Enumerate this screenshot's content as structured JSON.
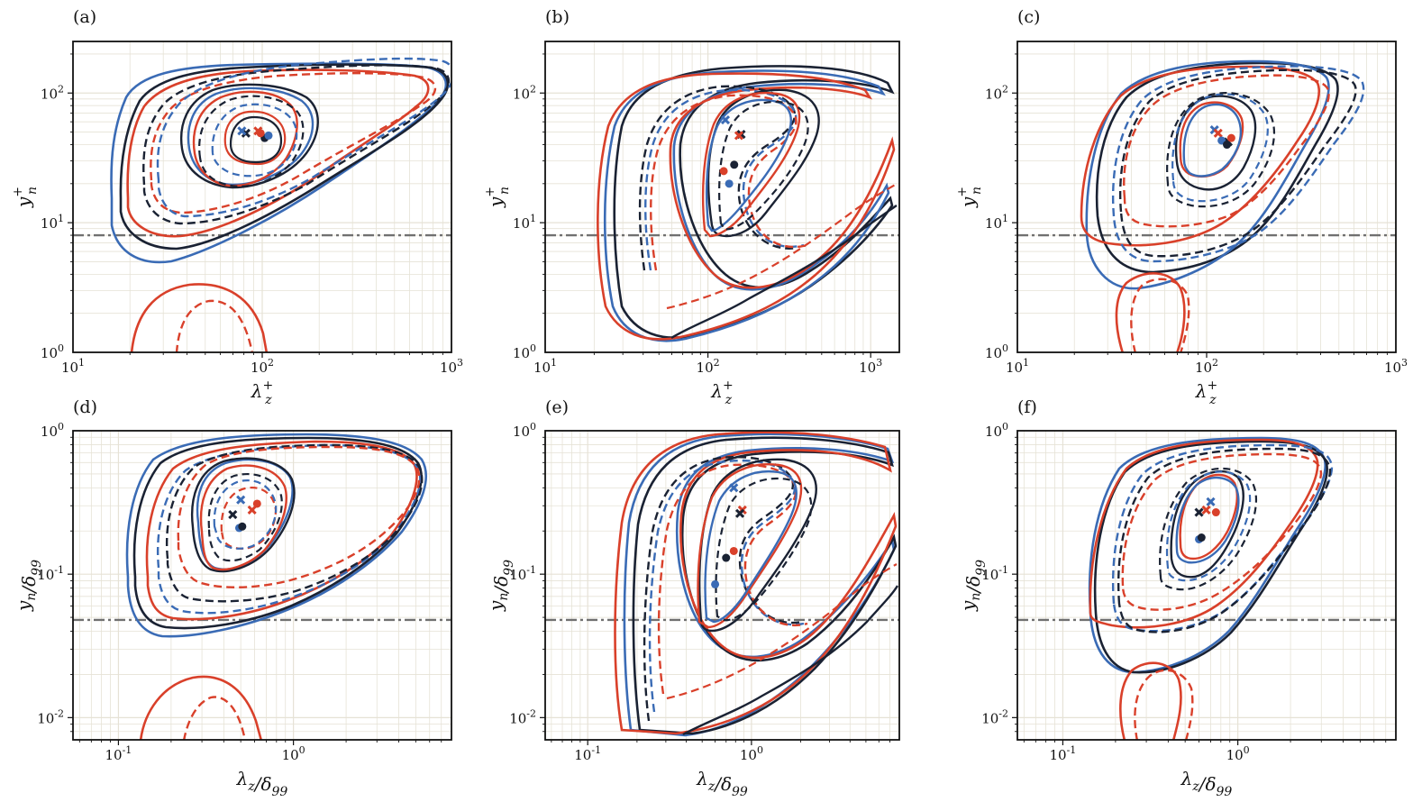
{
  "colors": {
    "black": "#1a2233",
    "blue": "#3a6bb5",
    "red": "#d9402a",
    "reference_line": "#707070",
    "grid": "#e6e2d6"
  },
  "chart_data": [
    {
      "type": "contour",
      "panel": "(a)",
      "xlabel": "λz+",
      "ylabel": "yn+",
      "xscale": "log",
      "yscale": "log",
      "xlim": [
        10,
        1000
      ],
      "ylim": [
        1,
        250
      ],
      "x_ticks": [
        {
          "v": 10,
          "label": "10^1"
        },
        {
          "v": 100,
          "label": "10^2"
        },
        {
          "v": 1000,
          "label": "10^3"
        }
      ],
      "y_ticks": [
        {
          "v": 1,
          "label": "10^0"
        },
        {
          "v": 10,
          "label": "10^1"
        },
        {
          "v": 100,
          "label": "10^2"
        }
      ],
      "reference_line_y": 8,
      "grid": true,
      "peaks": [
        {
          "series": "black",
          "marker": "x",
          "x": 82,
          "y": 49
        },
        {
          "series": "blue",
          "marker": "x",
          "x": 78,
          "y": 51
        },
        {
          "series": "red",
          "marker": "x",
          "x": 95,
          "y": 51
        },
        {
          "series": "black",
          "marker": "dot",
          "x": 103,
          "y": 45
        },
        {
          "series": "blue",
          "marker": "dot",
          "x": 108,
          "y": 47
        },
        {
          "series": "red",
          "marker": "dot",
          "x": 98,
          "y": 49
        }
      ]
    },
    {
      "type": "contour",
      "panel": "(b)",
      "xlabel": "λz+",
      "ylabel": "yn+",
      "xscale": "log",
      "yscale": "log",
      "xlim": [
        10,
        1500
      ],
      "ylim": [
        1,
        250
      ],
      "x_ticks": [
        {
          "v": 10,
          "label": "10^1"
        },
        {
          "v": 100,
          "label": "10^2"
        },
        {
          "v": 1000,
          "label": "10^3"
        }
      ],
      "y_ticks": [
        {
          "v": 1,
          "label": "10^0"
        },
        {
          "v": 10,
          "label": "10^1"
        },
        {
          "v": 100,
          "label": "10^2"
        }
      ],
      "reference_line_y": 8,
      "grid": true,
      "peaks": [
        {
          "series": "blue",
          "marker": "x",
          "x": 128,
          "y": 62
        },
        {
          "series": "black",
          "marker": "x",
          "x": 160,
          "y": 48
        },
        {
          "series": "red",
          "marker": "x",
          "x": 155,
          "y": 47
        },
        {
          "series": "red",
          "marker": "dot",
          "x": 125,
          "y": 25
        },
        {
          "series": "black",
          "marker": "dot",
          "x": 145,
          "y": 28
        },
        {
          "series": "blue",
          "marker": "dot",
          "x": 135,
          "y": 20
        }
      ]
    },
    {
      "type": "contour",
      "panel": "(c)",
      "xlabel": "λz+",
      "ylabel": "yn+",
      "xscale": "log",
      "yscale": "log",
      "xlim": [
        10,
        1000
      ],
      "ylim": [
        1,
        250
      ],
      "x_ticks": [
        {
          "v": 10,
          "label": "10^1"
        },
        {
          "v": 100,
          "label": "10^2"
        },
        {
          "v": 1000,
          "label": "10^3"
        }
      ],
      "y_ticks": [
        {
          "v": 1,
          "label": "10^0"
        },
        {
          "v": 10,
          "label": "10^1"
        },
        {
          "v": 100,
          "label": "10^2"
        }
      ],
      "reference_line_y": 8,
      "grid": true,
      "peaks": [
        {
          "series": "blue",
          "marker": "x",
          "x": 110,
          "y": 52
        },
        {
          "series": "red",
          "marker": "x",
          "x": 115,
          "y": 49
        },
        {
          "series": "black",
          "marker": "x",
          "x": 130,
          "y": 42
        },
        {
          "series": "red",
          "marker": "dot",
          "x": 135,
          "y": 45
        },
        {
          "series": "blue",
          "marker": "dot",
          "x": 120,
          "y": 43
        },
        {
          "series": "black",
          "marker": "dot",
          "x": 128,
          "y": 40
        }
      ]
    },
    {
      "type": "contour",
      "panel": "(d)",
      "xlabel": "λz/δ99",
      "ylabel": "yn/δ99",
      "xscale": "log",
      "yscale": "log",
      "xlim": [
        0.055,
        8
      ],
      "ylim": [
        0.007,
        1
      ],
      "x_ticks": [
        {
          "v": 0.1,
          "label": "10^-1"
        },
        {
          "v": 1,
          "label": "10^0"
        }
      ],
      "y_ticks": [
        {
          "v": 0.01,
          "label": "10^-2"
        },
        {
          "v": 0.1,
          "label": "10^-1"
        },
        {
          "v": 1,
          "label": "10^0"
        }
      ],
      "reference_line_y": 0.048,
      "grid": true,
      "peaks": [
        {
          "series": "blue",
          "marker": "x",
          "x": 0.5,
          "y": 0.33
        },
        {
          "series": "red",
          "marker": "x",
          "x": 0.58,
          "y": 0.28
        },
        {
          "series": "black",
          "marker": "x",
          "x": 0.45,
          "y": 0.26
        },
        {
          "series": "red",
          "marker": "dot",
          "x": 0.62,
          "y": 0.31
        },
        {
          "series": "blue",
          "marker": "dot",
          "x": 0.49,
          "y": 0.21
        },
        {
          "series": "black",
          "marker": "dot",
          "x": 0.51,
          "y": 0.215
        }
      ]
    },
    {
      "type": "contour",
      "panel": "(e)",
      "xlabel": "λz/δ99",
      "ylabel": "yn/δ99",
      "xscale": "log",
      "yscale": "log",
      "xlim": [
        0.055,
        8
      ],
      "ylim": [
        0.007,
        1
      ],
      "x_ticks": [
        {
          "v": 0.1,
          "label": "10^-1"
        },
        {
          "v": 1,
          "label": "10^0"
        }
      ],
      "y_ticks": [
        {
          "v": 0.01,
          "label": "10^-2"
        },
        {
          "v": 0.1,
          "label": "10^-1"
        },
        {
          "v": 1,
          "label": "10^0"
        }
      ],
      "reference_line_y": 0.048,
      "grid": true,
      "peaks": [
        {
          "series": "blue",
          "marker": "x",
          "x": 0.78,
          "y": 0.4
        },
        {
          "series": "red",
          "marker": "x",
          "x": 0.88,
          "y": 0.28
        },
        {
          "series": "black",
          "marker": "x",
          "x": 0.85,
          "y": 0.265
        },
        {
          "series": "red",
          "marker": "dot",
          "x": 0.78,
          "y": 0.145
        },
        {
          "series": "black",
          "marker": "dot",
          "x": 0.7,
          "y": 0.13
        },
        {
          "series": "blue",
          "marker": "dot",
          "x": 0.6,
          "y": 0.085
        }
      ]
    },
    {
      "type": "contour",
      "panel": "(f)",
      "xlabel": "λz/δ99",
      "ylabel": "yn/δ99",
      "xscale": "log",
      "yscale": "log",
      "xlim": [
        0.055,
        8
      ],
      "ylim": [
        0.007,
        1
      ],
      "x_ticks": [
        {
          "v": 0.1,
          "label": "10^-1"
        },
        {
          "v": 1,
          "label": "10^0"
        }
      ],
      "y_ticks": [
        {
          "v": 0.01,
          "label": "10^-2"
        },
        {
          "v": 0.1,
          "label": "10^-1"
        },
        {
          "v": 1,
          "label": "10^0"
        }
      ],
      "reference_line_y": 0.048,
      "grid": true,
      "peaks": [
        {
          "series": "blue",
          "marker": "x",
          "x": 0.7,
          "y": 0.32
        },
        {
          "series": "red",
          "marker": "x",
          "x": 0.66,
          "y": 0.28
        },
        {
          "series": "black",
          "marker": "x",
          "x": 0.6,
          "y": 0.27
        },
        {
          "series": "red",
          "marker": "dot",
          "x": 0.75,
          "y": 0.27
        },
        {
          "series": "blue",
          "marker": "dot",
          "x": 0.6,
          "y": 0.175
        },
        {
          "series": "black",
          "marker": "dot",
          "x": 0.62,
          "y": 0.18
        }
      ]
    }
  ]
}
